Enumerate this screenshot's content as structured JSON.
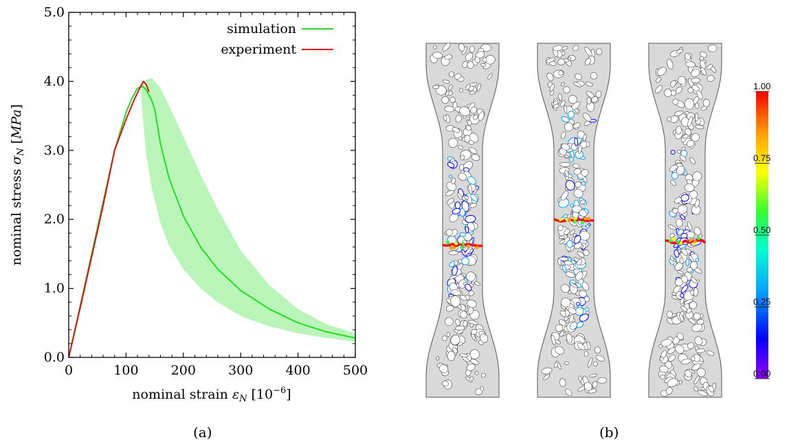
{
  "captions": {
    "a": "(a)",
    "b": "(b)"
  },
  "colors": {
    "simulation": "#22dd22",
    "band": "#b9f5b9",
    "experiment": "#dd1111",
    "specimen_fill": "#d9d9d9"
  },
  "chart_data": [
    {
      "type": "line",
      "xlabel": "nominal strain εN [10−6]",
      "ylabel": "nominal stress σN [MPa]",
      "xlim": [
        0,
        500
      ],
      "ylim": [
        0,
        5
      ],
      "xticks": [
        0,
        100,
        200,
        300,
        400,
        500
      ],
      "xtick_labels": [
        "0",
        "100",
        "200",
        "300",
        "400",
        "500"
      ],
      "yticks": [
        0,
        1,
        2,
        3,
        4,
        5
      ],
      "ytick_labels": [
        "0.0",
        "1.0",
        "2.0",
        "3.0",
        "4.0",
        "5.0"
      ],
      "legend_position": "top-right",
      "series": [
        {
          "name": "simulation",
          "x": [
            0,
            20,
            40,
            60,
            80,
            100,
            110,
            120,
            128,
            135,
            140,
            145,
            150,
            160,
            175,
            200,
            230,
            260,
            300,
            350,
            400,
            450,
            500
          ],
          "y": [
            0,
            0.75,
            1.5,
            2.25,
            3.0,
            3.55,
            3.75,
            3.9,
            3.93,
            3.88,
            3.8,
            3.72,
            3.6,
            3.1,
            2.6,
            2.05,
            1.6,
            1.28,
            0.97,
            0.7,
            0.5,
            0.37,
            0.28
          ]
        },
        {
          "name": "experiment",
          "x": [
            0,
            20,
            40,
            60,
            80,
            100,
            115,
            125,
            130,
            135,
            140
          ],
          "y": [
            0,
            0.72,
            1.46,
            2.2,
            3.0,
            3.45,
            3.75,
            3.92,
            4.0,
            3.96,
            3.85
          ]
        }
      ],
      "band": {
        "x": [
          125,
          128,
          135,
          145,
          160,
          175,
          200,
          230,
          260,
          300,
          350,
          400,
          450,
          500
        ],
        "lower": [
          3.9,
          3.6,
          2.95,
          2.45,
          1.95,
          1.62,
          1.28,
          1.0,
          0.8,
          0.6,
          0.45,
          0.35,
          0.28,
          0.23
        ],
        "upper": [
          3.95,
          3.98,
          4.02,
          4.05,
          3.9,
          3.65,
          3.2,
          2.65,
          2.15,
          1.55,
          1.05,
          0.7,
          0.48,
          0.35
        ]
      }
    },
    {
      "type": "heatmap",
      "panels": 3,
      "colorbar": {
        "min": 0.0,
        "max": 1.0,
        "ticks": [
          1.0,
          0.75,
          0.5,
          0.25,
          0.0
        ],
        "tick_labels": [
          "1.00",
          "0.75",
          "0.50",
          "0.25",
          "0.00"
        ],
        "colormap": [
          "#9900ff",
          "#0000ff",
          "#00a0ff",
          "#00ffd0",
          "#33ff33",
          "#ffff00",
          "#ff9900",
          "#ff0000"
        ]
      },
      "crack_level": [
        0.57,
        0.5,
        0.56
      ],
      "damage_band": [
        [
          0.32,
          0.72
        ],
        [
          0.2,
          0.8
        ],
        [
          0.3,
          0.72
        ]
      ]
    }
  ]
}
